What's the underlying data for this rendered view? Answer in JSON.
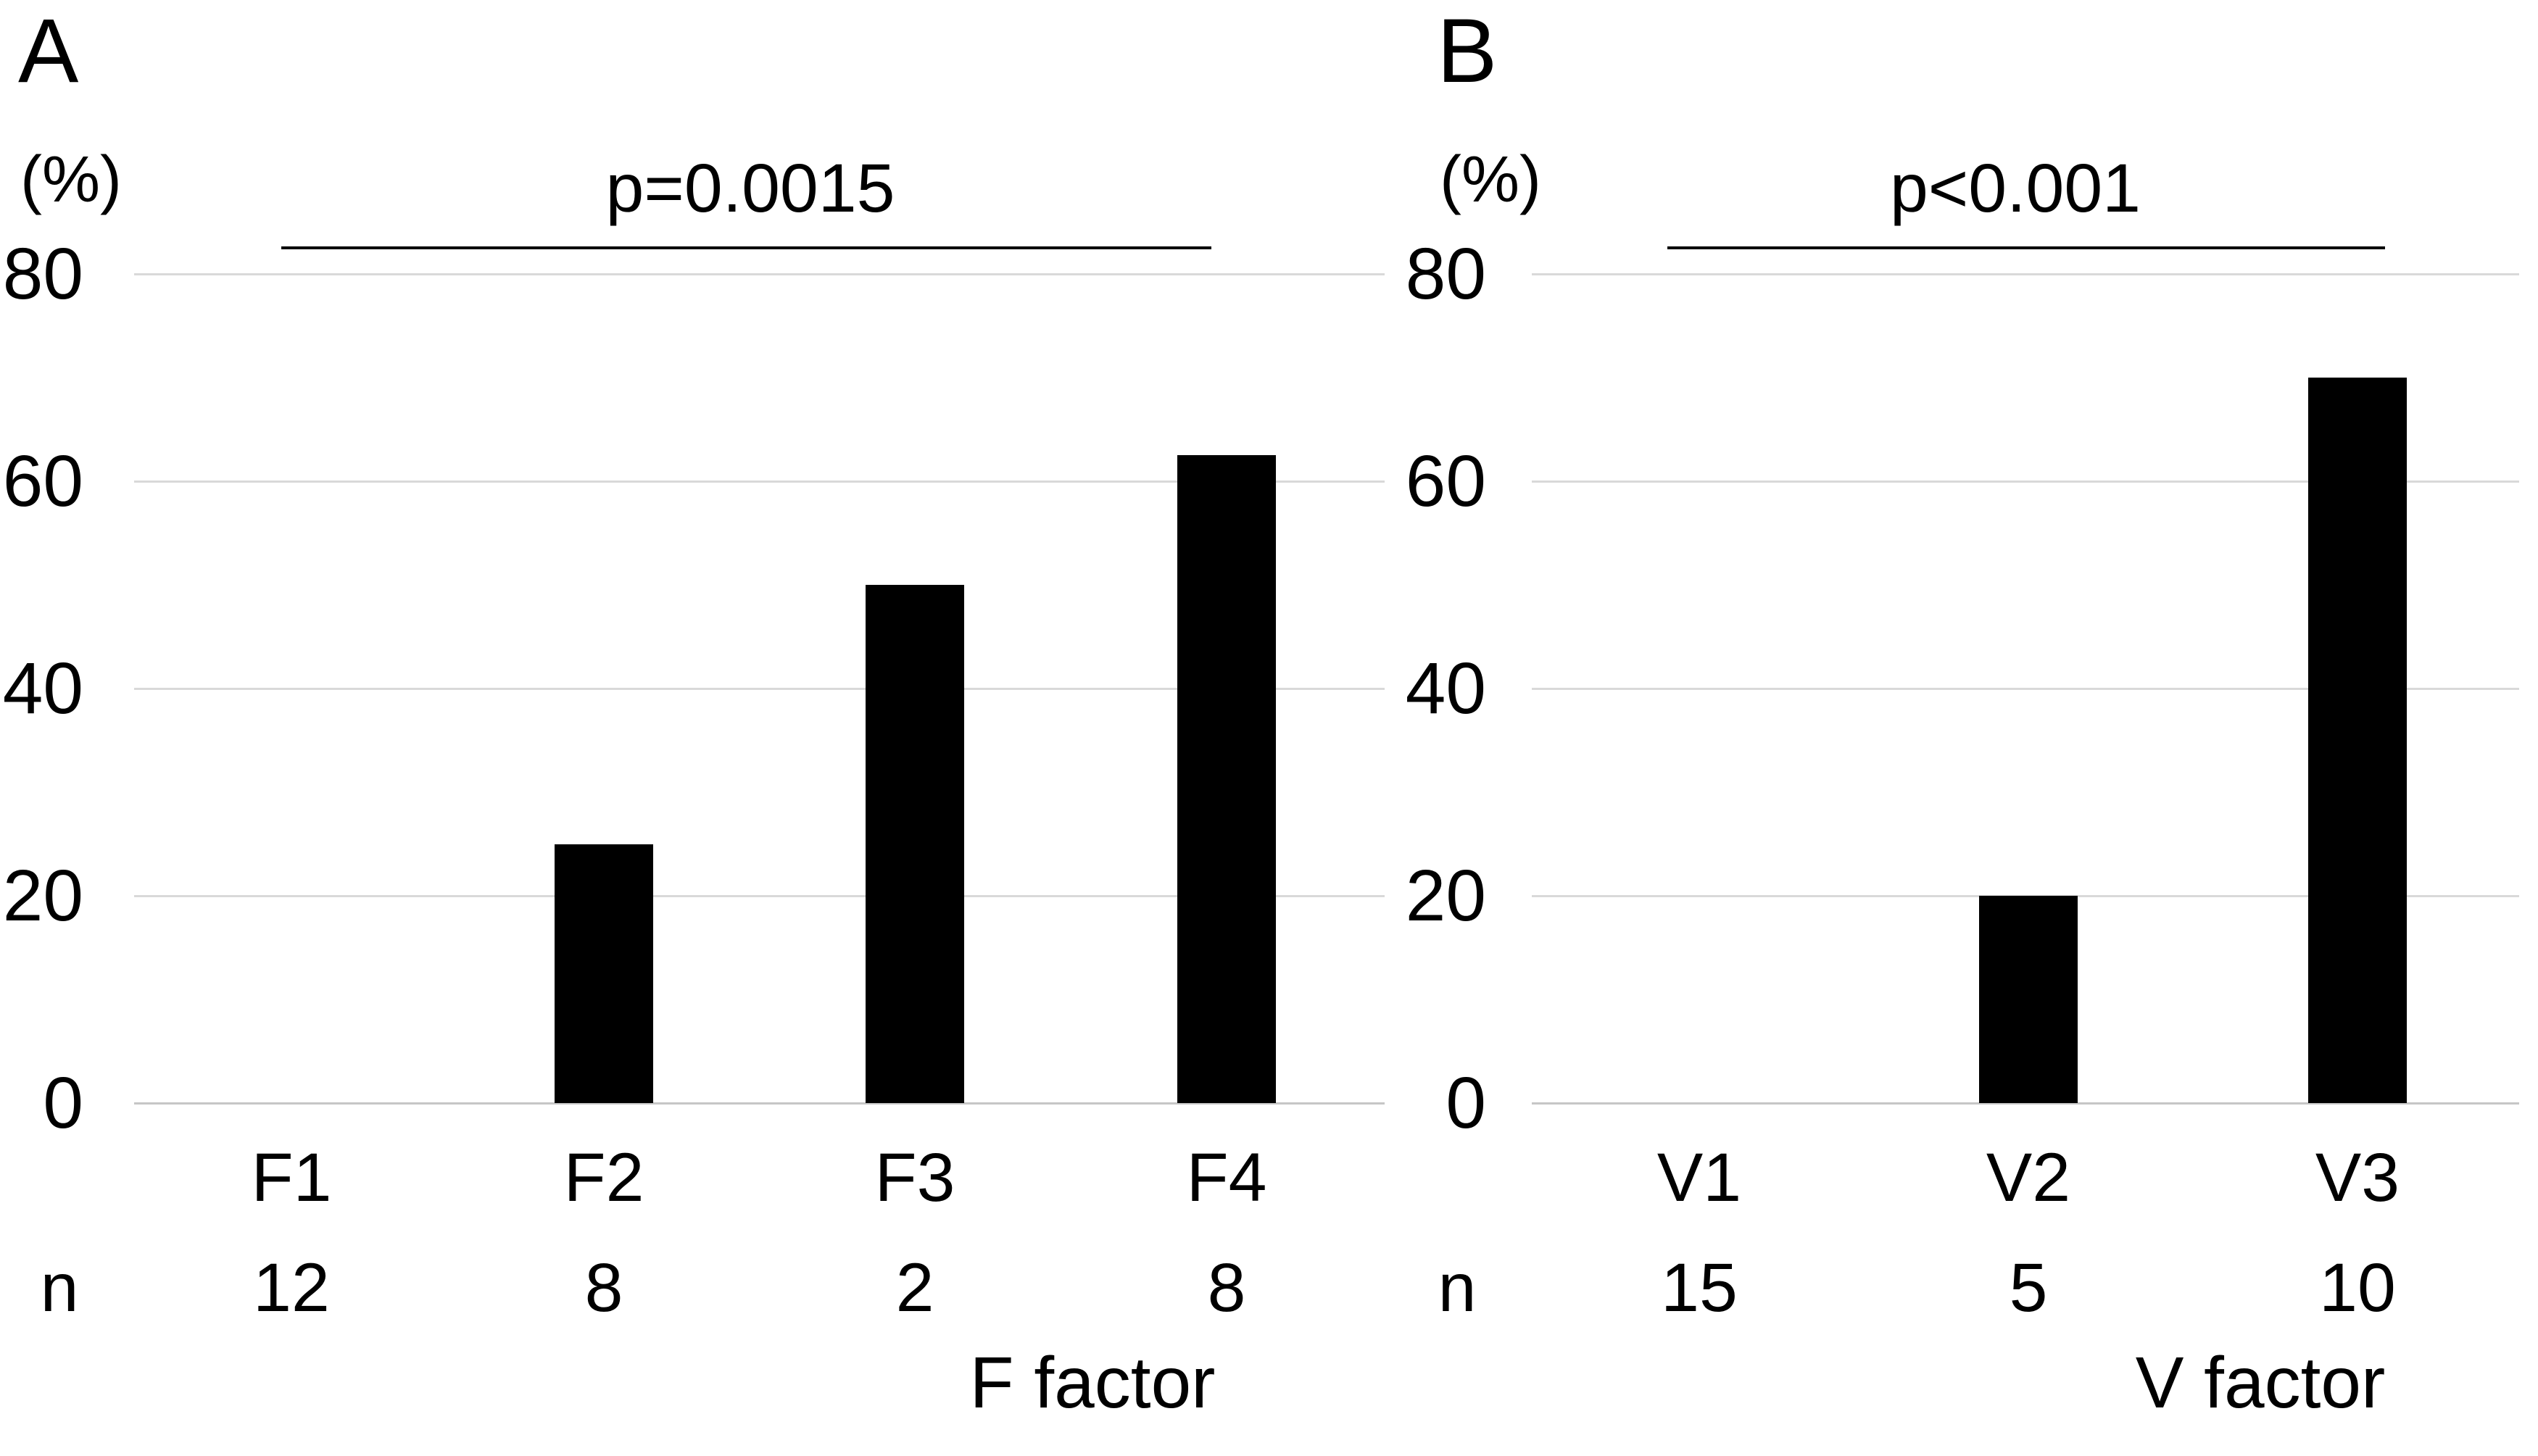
{
  "figure": {
    "background_color": "#ffffff",
    "bar_color": "#000000",
    "gridline_color": "#d9d9d9",
    "baseline_color": "#c6c6c6",
    "bracket_color": "#000000",
    "text_color": "#000000"
  },
  "panels": [
    {
      "panel_label": "A",
      "y_unit": "(%)",
      "n_label": "n",
      "chart_data": {
        "type": "bar",
        "title": "",
        "p_value": "p=0.0015",
        "xlabel": "F factor",
        "ylabel": "(%)",
        "ylim": [
          0,
          80
        ],
        "yticks": [
          0,
          20,
          40,
          60,
          80
        ],
        "grid": true,
        "legend": false,
        "categories": [
          "F1",
          "F2",
          "F3",
          "F4"
        ],
        "values": [
          0,
          25,
          50,
          62.5
        ],
        "n_values": [
          12,
          8,
          2,
          8
        ]
      }
    },
    {
      "panel_label": "B",
      "y_unit": "(%)",
      "n_label": "n",
      "chart_data": {
        "type": "bar",
        "title": "",
        "p_value": "p<0.001",
        "xlabel": "V factor",
        "ylabel": "(%)",
        "ylim": [
          0,
          80
        ],
        "yticks": [
          0,
          20,
          40,
          60,
          80
        ],
        "grid": true,
        "legend": false,
        "categories": [
          "V1",
          "V2",
          "V3"
        ],
        "values": [
          0,
          20,
          70
        ],
        "n_values": [
          15,
          5,
          10
        ]
      }
    }
  ]
}
